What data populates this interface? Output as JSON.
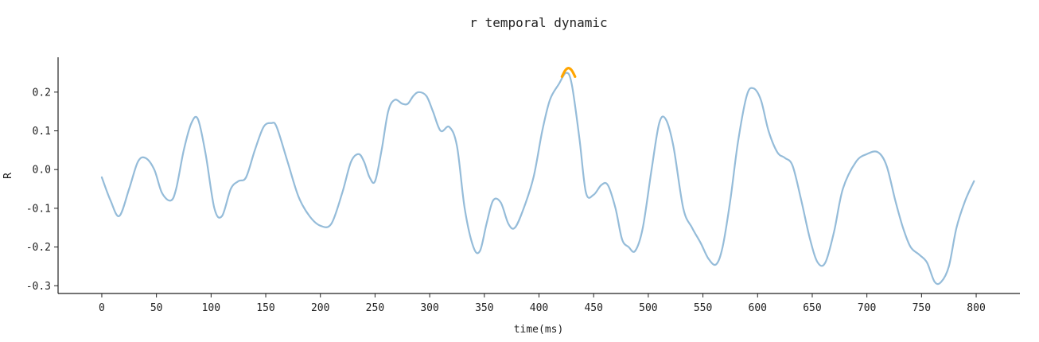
{
  "chart_data": {
    "type": "line",
    "title": "r temporal dynamic",
    "xlabel": "time(ms)",
    "ylabel": "R",
    "xlim": [
      -40,
      840
    ],
    "ylim": [
      -0.32,
      0.29
    ],
    "xticks": [
      0,
      50,
      100,
      150,
      200,
      250,
      300,
      350,
      400,
      450,
      500,
      550,
      600,
      650,
      700,
      750,
      800
    ],
    "yticks": [
      -0.3,
      -0.2,
      -0.1,
      0.0,
      0.1,
      0.2
    ],
    "ytick_labels": [
      "-0.3",
      "-0.2",
      "-0.1",
      "0.0",
      "0.1",
      "0.2"
    ],
    "grid": false,
    "colors": {
      "line": "#95bcd9",
      "highlight": "#ffa500",
      "axis": "#222222"
    },
    "series": [
      {
        "x": [
          0,
          8,
          16,
          25,
          33,
          40,
          48,
          55,
          63,
          68,
          75,
          82,
          88,
          95,
          103,
          110,
          118,
          125,
          132,
          140,
          148,
          155,
          160,
          170,
          180,
          190,
          200,
          210,
          220,
          228,
          235,
          240,
          245,
          250,
          256,
          262,
          268,
          275,
          280,
          285,
          290,
          297,
          303,
          310,
          318,
          325,
          332,
          340,
          346,
          352,
          358,
          365,
          372,
          378,
          386,
          395,
          403,
          410,
          418,
          425,
          430,
          437,
          443,
          450,
          457,
          463,
          470,
          476,
          482,
          488,
          495,
          503,
          510,
          516,
          523,
          532,
          540,
          548,
          555,
          562,
          568,
          575,
          582,
          590,
          596,
          603,
          610,
          618,
          625,
          632,
          640,
          648,
          655,
          662,
          670,
          678,
          690,
          700,
          710,
          718,
          726,
          733,
          740,
          748,
          755,
          762,
          768,
          775,
          782,
          790,
          798
        ],
        "y": [
          -0.02,
          -0.08,
          -0.12,
          -0.05,
          0.02,
          0.03,
          0.0,
          -0.06,
          -0.08,
          -0.05,
          0.05,
          0.12,
          0.13,
          0.04,
          -0.1,
          -0.12,
          -0.05,
          -0.03,
          -0.02,
          0.05,
          0.11,
          0.12,
          0.11,
          0.02,
          -0.07,
          -0.12,
          -0.145,
          -0.14,
          -0.06,
          0.02,
          0.04,
          0.02,
          -0.02,
          -0.03,
          0.05,
          0.15,
          0.18,
          0.17,
          0.17,
          0.19,
          0.2,
          0.19,
          0.15,
          0.1,
          0.11,
          0.06,
          -0.1,
          -0.2,
          -0.21,
          -0.14,
          -0.08,
          -0.085,
          -0.14,
          -0.15,
          -0.1,
          -0.02,
          0.1,
          0.18,
          0.22,
          0.25,
          0.22,
          0.08,
          -0.06,
          -0.065,
          -0.04,
          -0.04,
          -0.1,
          -0.18,
          -0.2,
          -0.21,
          -0.15,
          0.0,
          0.12,
          0.13,
          0.06,
          -0.1,
          -0.15,
          -0.19,
          -0.23,
          -0.245,
          -0.2,
          -0.08,
          0.07,
          0.19,
          0.21,
          0.18,
          0.1,
          0.045,
          0.03,
          0.01,
          -0.08,
          -0.18,
          -0.24,
          -0.24,
          -0.16,
          -0.05,
          0.02,
          0.04,
          0.045,
          0.01,
          -0.08,
          -0.15,
          -0.2,
          -0.22,
          -0.24,
          -0.29,
          -0.29,
          -0.25,
          -0.15,
          -0.08,
          -0.03
        ]
      },
      {
        "x": [
          421,
          424,
          427,
          430,
          433
        ],
        "y": [
          0.24,
          0.256,
          0.262,
          0.256,
          0.24
        ]
      }
    ]
  }
}
